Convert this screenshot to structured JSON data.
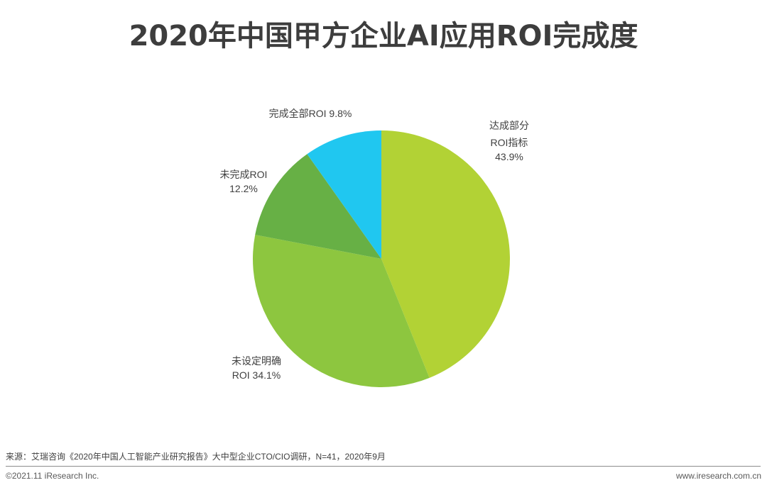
{
  "title": "2020年中国甲方企业AI应用ROI完成度",
  "chart_data": {
    "type": "pie",
    "title": "2020年中国甲方企业AI应用ROI完成度",
    "start_angle": "12 o'clock, clockwise",
    "slices": [
      {
        "label": "达成部分ROI指标",
        "value": 43.9,
        "color": "#B2D235"
      },
      {
        "label": "未设定明确ROI",
        "value": 34.1,
        "color": "#8DC63F"
      },
      {
        "label": "未完成ROI",
        "value": 12.2,
        "color": "#67B045"
      },
      {
        "label": "完成全部ROI",
        "value": 9.8,
        "color": "#20C7F0"
      }
    ],
    "legend": "none (direct labels)"
  },
  "labels": {
    "slice0_line1": "达成部分",
    "slice0_line2": "ROI指标",
    "slice0_line3": "43.9%",
    "slice1_line1": "未设定明确",
    "slice1_line2": "ROI 34.1%",
    "slice2_line1": "未完成ROI",
    "slice2_line2": "12.2%",
    "slice3_line1": "完成全部ROI 9.8%"
  },
  "footer": {
    "source": "来源：艾瑞咨询《2020年中国人工智能产业研究报告》大中型企业CTO/CIO调研，N=41，2020年9月",
    "copyright": "©2021.11 iResearch Inc.",
    "url": "www.iresearch.com.cn"
  }
}
